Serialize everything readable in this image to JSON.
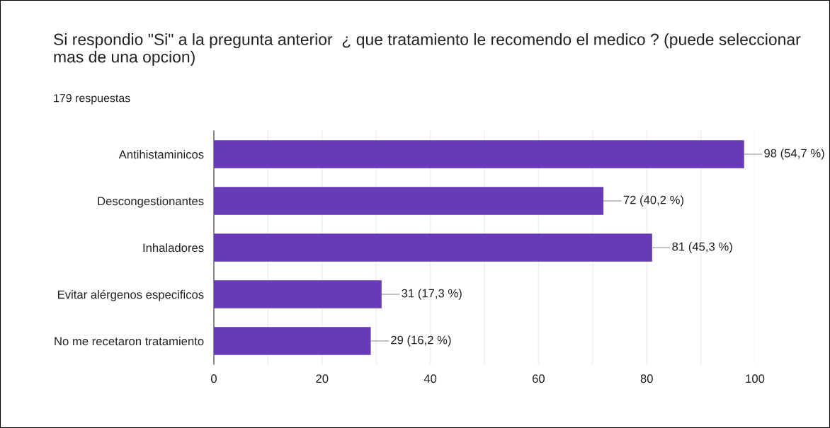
{
  "chart_data": {
    "type": "bar",
    "orientation": "horizontal",
    "title": "Si respondio \"Si\" a la pregunta anterior  ¿ que tratamiento le recomendo el medico ? (puede seleccionar mas de una opcion)",
    "subtitle": "179 respuestas",
    "categories": [
      "Antihistaminicos",
      "Descongestionantes",
      "Inhaladores",
      "Evitar alérgenos especificos",
      "No me recetaron tratamiento"
    ],
    "values": [
      98,
      72,
      81,
      31,
      29
    ],
    "value_labels": [
      "98 (54,7 %)",
      "72 (40,2 %)",
      "81 (45,3 %)",
      "31 (17,3 %)",
      "29 (16,2 %)"
    ],
    "color": "#673ab7",
    "xlim": [
      0,
      100
    ],
    "xticks": [
      0,
      {
        "value": 10,
        "label": null
      },
      20,
      {
        "value": 30,
        "label": null
      },
      40,
      {
        "value": 50,
        "label": null
      },
      60,
      {
        "value": 70,
        "label": null
      },
      80,
      {
        "value": 90,
        "label": null
      },
      100
    ],
    "grid": "x",
    "legend": false
  }
}
